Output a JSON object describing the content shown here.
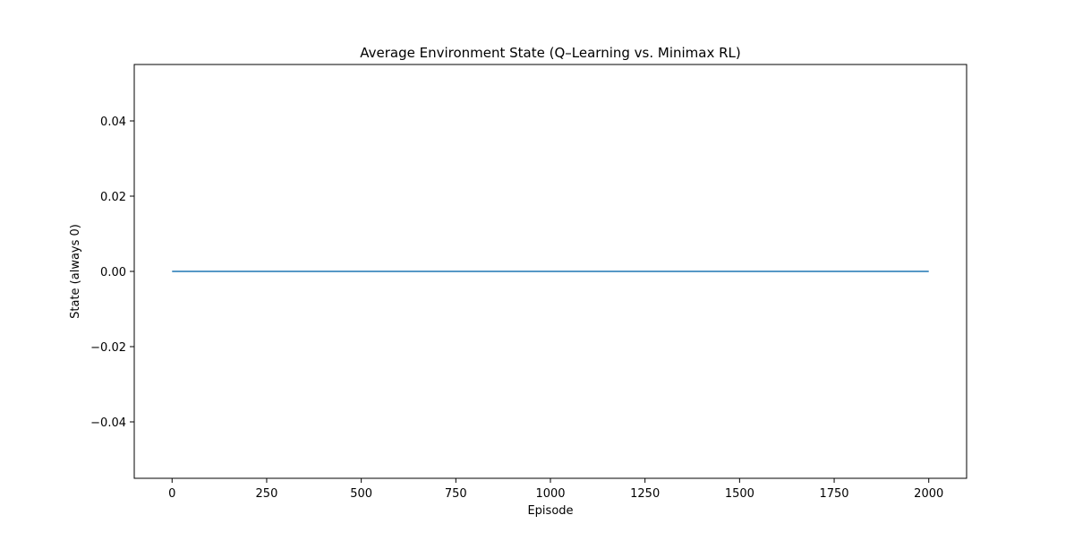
{
  "chart_data": {
    "type": "line",
    "title": "Average Environment State (Q–Learning vs. Minimax RL)",
    "xlabel": "Episode",
    "ylabel": "State (always 0)",
    "xlim": [
      -100,
      2100
    ],
    "ylim": [
      -0.055,
      0.055
    ],
    "xticks": [
      0,
      250,
      500,
      750,
      1000,
      1250,
      1500,
      1750,
      2000
    ],
    "xtick_labels": [
      "0",
      "250",
      "500",
      "750",
      "1000",
      "1250",
      "1500",
      "1750",
      "2000"
    ],
    "yticks": [
      0.04,
      0.02,
      0.0,
      -0.02,
      -0.04
    ],
    "ytick_labels": [
      "0.04",
      "0.02",
      "0.00",
      "−0.02",
      "−0.04"
    ],
    "grid": false,
    "series": [
      {
        "color": "#1f77b4",
        "x": [
          0,
          2000
        ],
        "y": [
          0,
          0
        ]
      }
    ]
  }
}
